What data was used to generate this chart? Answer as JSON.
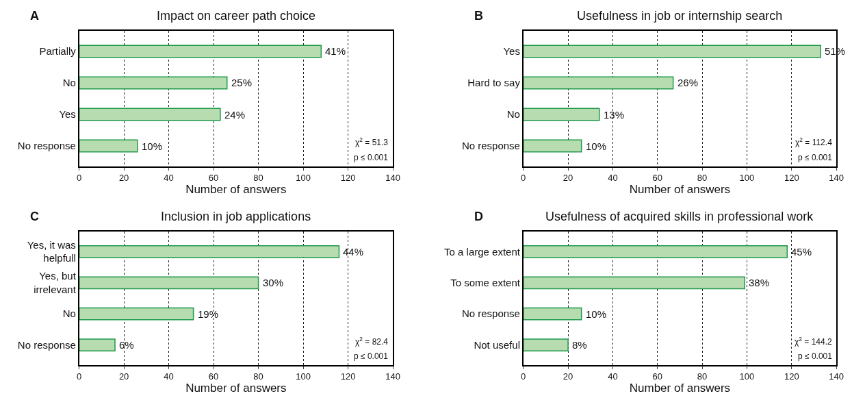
{
  "chart_data": [
    {
      "type": "bar",
      "orientation": "horizontal",
      "title": "Impact on career path choice",
      "xlabel": "Number of answers",
      "categories": [
        "Partially",
        "No",
        "Yes",
        "No response"
      ],
      "values": [
        108,
        66,
        63,
        26
      ],
      "color": "#b7dcb0",
      "xlim": [
        0,
        140
      ],
      "xticks": [
        0,
        20,
        40,
        60,
        80,
        100,
        120,
        140
      ],
      "grid": "x",
      "legend": false,
      "annotations": [
        "A",
        "χ$^{2}$ = 51.3",
        "p ≤ 0.001",
        {
          "text": "41%",
          "x": 108,
          "y": "Partially"
        },
        {
          "text": "25%",
          "x": 66,
          "y": "No"
        },
        {
          "text": "24%",
          "x": 63,
          "y": "Yes"
        },
        {
          "text": "10%",
          "x": 26,
          "y": "No response"
        }
      ]
    },
    {
      "type": "bar",
      "orientation": "horizontal",
      "title": "Usefulness in job or internship search",
      "xlabel": "Number of answers",
      "categories": [
        "Yes",
        "Hard to say",
        "No",
        "No response"
      ],
      "values": [
        133,
        67,
        34,
        26
      ],
      "color": "#b7dcb0",
      "xlim": [
        0,
        140
      ],
      "xticks": [
        0,
        20,
        40,
        60,
        80,
        100,
        120,
        140
      ],
      "grid": "x",
      "legend": false,
      "annotations": [
        "B",
        "χ$^{2}$ = 112.4",
        "p ≤ 0.001",
        {
          "text": "51%",
          "x": 133,
          "y": "Yes"
        },
        {
          "text": "26%",
          "x": 67,
          "y": "Hard to say"
        },
        {
          "text": "13%",
          "x": 34,
          "y": "No"
        },
        {
          "text": "10%",
          "x": 26,
          "y": "No response"
        }
      ]
    },
    {
      "type": "bar",
      "orientation": "horizontal",
      "title": "Inclusion in job applications",
      "xlabel": "Number of answers",
      "categories": [
        "Yes, it was\nhelpfull",
        "Yes, but\nirrelevant",
        "No",
        "No response"
      ],
      "values": [
        116,
        80,
        51,
        16
      ],
      "color": "#b7dcb0",
      "xlim": [
        0,
        140
      ],
      "xticks": [
        0,
        20,
        40,
        60,
        80,
        100,
        120,
        140
      ],
      "grid": "x",
      "legend": false,
      "annotations": [
        "C",
        "χ$^{2}$ = 82.4",
        "p ≤ 0.001",
        {
          "text": "44%",
          "x": 116,
          "y": "Yes, it was\nhelpfull"
        },
        {
          "text": "30%",
          "x": 80,
          "y": "Yes, but\nirrelevant"
        },
        {
          "text": "19%",
          "x": 51,
          "y": "No"
        },
        {
          "text": "6%",
          "x": 16,
          "y": "No response"
        }
      ]
    },
    {
      "type": "bar",
      "orientation": "horizontal",
      "title": "Usefulness of acquired skills in professional work",
      "xlabel": "Number of answers",
      "categories": [
        "To a large extent",
        "To some extent",
        "No response",
        "Not useful"
      ],
      "values": [
        118,
        99,
        26,
        20
      ],
      "color": "#b7dcb0",
      "xlim": [
        0,
        140
      ],
      "xticks": [
        0,
        20,
        40,
        60,
        80,
        100,
        120,
        140
      ],
      "grid": "x",
      "legend": false,
      "annotations": [
        "D",
        "χ$^{2}$ = 144.2",
        "p ≤ 0.001",
        {
          "text": "45%",
          "x": 118,
          "y": "To a large extent"
        },
        {
          "text": "38%",
          "x": 99,
          "y": "To some extent"
        },
        {
          "text": "10%",
          "x": 26,
          "y": "No response"
        },
        {
          "text": "8%",
          "x": 20,
          "y": "Not useful"
        }
      ]
    }
  ]
}
